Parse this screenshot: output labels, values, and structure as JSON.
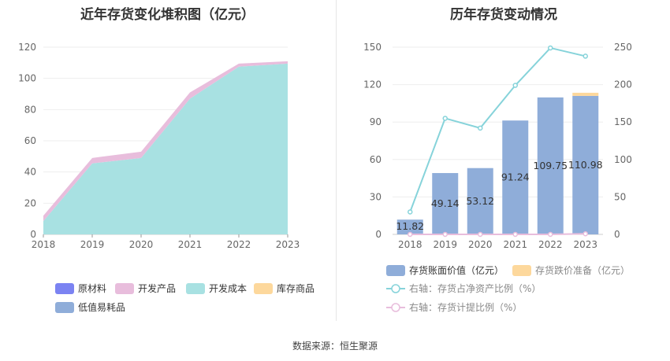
{
  "source": "数据来源：恒生聚源",
  "chart_data": [
    {
      "type": "area",
      "title": "近年存货变化堆积图（亿元）",
      "categories": [
        "2018",
        "2019",
        "2020",
        "2021",
        "2022",
        "2023"
      ],
      "ylim": [
        0,
        120
      ],
      "yticks": [
        "0",
        "20",
        "40",
        "60",
        "80",
        "100",
        "120"
      ],
      "stacked": true,
      "grid": true,
      "legend_position": "bottom",
      "series": [
        {
          "name": "原材料",
          "color": "#7b83f2",
          "values": [
            0,
            0,
            0,
            0,
            0,
            0
          ]
        },
        {
          "name": "开发产品",
          "color": "#e8bddc",
          "values": [
            3.5,
            3.5,
            4,
            4,
            2,
            1.5
          ]
        },
        {
          "name": "开发成本",
          "color": "#a8e1e2",
          "values": [
            8.5,
            45.5,
            49,
            87,
            107.5,
            109.5
          ]
        },
        {
          "name": "库存商品",
          "color": "#fdd89c",
          "values": [
            0,
            0,
            0,
            0,
            0,
            0
          ]
        },
        {
          "name": "低值易耗品",
          "color": "#8fadd9",
          "values": [
            0,
            0,
            0,
            0,
            0,
            0
          ]
        }
      ]
    },
    {
      "type": "bar",
      "title": "历年存货变动情况",
      "categories": [
        "2018",
        "2019",
        "2020",
        "2021",
        "2022",
        "2023"
      ],
      "ylim": [
        0,
        150
      ],
      "yticks": [
        "0",
        "30",
        "60",
        "90",
        "120",
        "150"
      ],
      "y2lim": [
        0,
        250
      ],
      "y2ticks": [
        "0",
        "50",
        "100",
        "150",
        "200",
        "250"
      ],
      "grid": true,
      "legend_position": "bottom",
      "series": [
        {
          "name": "存货账面价值（亿元）",
          "axis": "left",
          "kind": "bar",
          "color": "#8fadd9",
          "values": [
            11.82,
            49.14,
            53.12,
            91.24,
            109.75,
            110.98
          ],
          "labels": [
            "11.82",
            "49.14",
            "53.12",
            "91.24",
            "109.75",
            "110.98"
          ]
        },
        {
          "name": "存货跌价准备（亿元）",
          "axis": "left",
          "kind": "bar-stack",
          "color": "#fdd89c",
          "values": [
            0,
            0,
            0,
            0,
            0,
            2.5
          ]
        },
        {
          "name": "右轴：存货占净资产比例（%）",
          "axis": "right",
          "kind": "line",
          "color": "#86d3da",
          "values": [
            30,
            155,
            142,
            199,
            249,
            238
          ]
        },
        {
          "name": "右轴：存货计提比例（%）",
          "axis": "right",
          "kind": "line",
          "color": "#e8bddc",
          "values": [
            0,
            0,
            0,
            0,
            0,
            0.8
          ]
        }
      ]
    }
  ]
}
